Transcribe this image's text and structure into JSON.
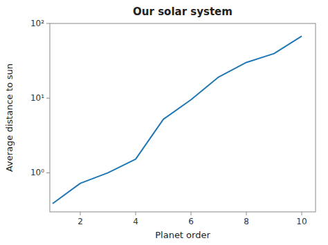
{
  "chart_data": {
    "type": "line",
    "title": "Our solar system",
    "xlabel": "Planet order",
    "ylabel": "Average distance to sun",
    "x": [
      1,
      2,
      3,
      4,
      5,
      6,
      7,
      8,
      9,
      10
    ],
    "values": [
      0.387,
      0.723,
      1.0,
      1.524,
      5.203,
      9.537,
      19.191,
      30.069,
      39.482,
      67.67
    ],
    "color": "#1f77b4",
    "xlim": [
      0.9,
      10.5
    ],
    "ylim": [
      0.3,
      100
    ],
    "xticks": [
      2,
      4,
      6,
      8,
      10
    ],
    "yticks": [
      {
        "value": 1,
        "label": "10⁰"
      },
      {
        "value": 10,
        "label": "10¹"
      },
      {
        "value": 100,
        "label": "10²"
      }
    ],
    "log": "y",
    "grid": false
  }
}
